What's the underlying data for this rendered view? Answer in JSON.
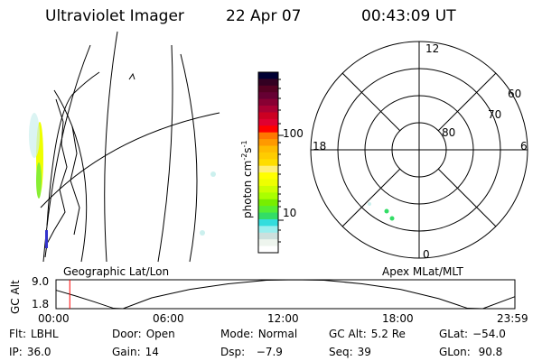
{
  "header": {
    "instrument": "Ultraviolet Imager",
    "date": "22 Apr 07",
    "time": "00:43:09 UT"
  },
  "colorbar": {
    "label": "photon cm",
    "label_exp1": "-2",
    "label_s": "s",
    "label_exp2": "-1",
    "scale": "log",
    "tick_labels": [
      "100",
      "10"
    ],
    "colors": [
      "#000033",
      "#330022",
      "#550022",
      "#660033",
      "#880033",
      "#aa0033",
      "#cc0022",
      "#e00030",
      "#ff0000",
      "#ff7700",
      "#ff9900",
      "#ffbb00",
      "#ffcc00",
      "#ffdd00",
      "#ffee77",
      "#ffff00",
      "#eeff00",
      "#ccff00",
      "#aaff00",
      "#77ee00",
      "#55ee33",
      "#33dd66",
      "#33dddd",
      "#99eeee",
      "#cce0dd",
      "#eef5ee",
      "#ffffff"
    ]
  },
  "polar": {
    "labels": {
      "top": "12",
      "bottom": "0",
      "left": "18",
      "right": "6"
    },
    "lat_labels": [
      "60",
      "70",
      "80"
    ]
  },
  "timeline": {
    "left_label": "Geographic Lat/Lon",
    "right_label": "Apex MLat/MLT",
    "ylabel": "GC Alt",
    "current_time_color": "#ff0000"
  },
  "chart_data": {
    "type": "line",
    "ylabel": "GC Alt",
    "xlabel": "",
    "x_tick_labels": [
      "00:00",
      "06:00",
      "12:00",
      "18:00",
      "23:59"
    ],
    "y_tick_labels": [
      "9.0",
      "1.8"
    ],
    "ylim": [
      1.8,
      9.0
    ],
    "xlim_hours": [
      0,
      23.98
    ],
    "x_hours": [
      0,
      1,
      2,
      3,
      3.5,
      5,
      7,
      9,
      11,
      12.5,
      14,
      16,
      18,
      20,
      21.5,
      22.3,
      23.98
    ],
    "values": [
      6.4,
      5.0,
      3.5,
      1.9,
      1.8,
      4.5,
      6.6,
      8.0,
      8.9,
      9.0,
      8.9,
      8.0,
      6.6,
      4.3,
      1.9,
      1.8,
      4.8
    ],
    "current_time_hours": 0.72,
    "grid": false
  },
  "status": [
    [
      {
        "label": "Flt:",
        "value": "LBHL"
      },
      {
        "label": "Door:",
        "value": "Open"
      },
      {
        "label": "Mode:",
        "value": "Normal"
      },
      {
        "label": "GC Alt:",
        "value": "5.2 Re"
      },
      {
        "label": "GLat:",
        "value": "−54.0"
      }
    ],
    [
      {
        "label": "IP:",
        "value": "36.0"
      },
      {
        "label": "Gain:",
        "value": "14"
      },
      {
        "label": "Dsp:",
        "value": "  −7.9"
      },
      {
        "label": "Seq:",
        "value": "39"
      },
      {
        "label": "GLon:",
        "value": " 90.8"
      }
    ]
  ]
}
